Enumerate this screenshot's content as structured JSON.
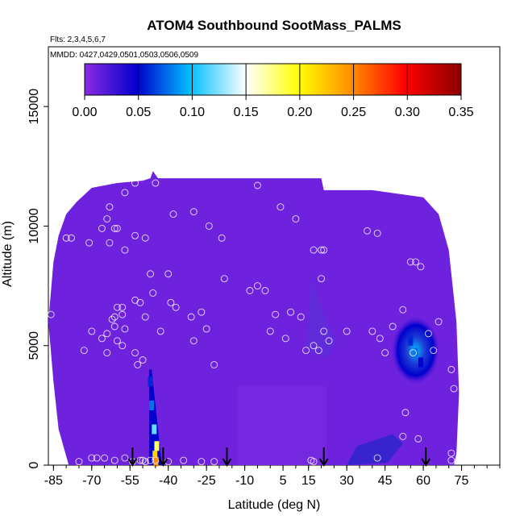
{
  "chart_data": {
    "type": "heatmap",
    "title": "ATOM4 Southbound SootMass_PALMS",
    "subtitle_flights": "Flts: 2,3,4,5,6,7",
    "subtitle_dates": "MMDD: 0427,0429,0501,0503,0506,0509",
    "xlabel": "Latitude (deg N)",
    "ylabel": "Altitude (m)",
    "xlim": [
      -87,
      90
    ],
    "ylim": [
      0,
      17500
    ],
    "x_ticks": [
      -85,
      -70,
      -55,
      -40,
      -25,
      -10,
      5,
      15,
      30,
      45,
      60,
      75
    ],
    "y_ticks": [
      0,
      5000,
      10000,
      15000
    ],
    "colorbar": {
      "ticks": [
        "0.00",
        "0.05",
        "0.10",
        "0.15",
        "0.20",
        "0.25",
        "0.30",
        "0.35"
      ],
      "range": [
        0,
        0.35
      ],
      "colors": [
        "#8a2be2",
        "#0000cd",
        "#00bfff",
        "#ffffff",
        "#ffff00",
        "#ff8c00",
        "#ff0000",
        "#8b0000"
      ]
    },
    "background_value": 0.01,
    "curtain_outline": [
      [
        -87,
        6000
      ],
      [
        -85,
        8500
      ],
      [
        -83,
        9600
      ],
      [
        -80,
        10500
      ],
      [
        -76,
        11000
      ],
      [
        -70,
        11600
      ],
      [
        -60,
        11800
      ],
      [
        -50,
        11900
      ],
      [
        -47,
        12000
      ],
      [
        -46,
        12300
      ],
      [
        -44,
        12000
      ],
      [
        -30,
        12000
      ],
      [
        -20,
        12000
      ],
      [
        0,
        12000
      ],
      [
        20,
        12000
      ],
      [
        21,
        11500
      ],
      [
        40,
        11500
      ],
      [
        60,
        11200
      ],
      [
        66,
        10500
      ],
      [
        70,
        9000
      ],
      [
        73,
        6000
      ],
      [
        74,
        3000
      ],
      [
        73,
        500
      ],
      [
        72,
        0
      ],
      [
        -79,
        0
      ],
      [
        -83,
        1500
      ],
      [
        -85,
        3500
      ],
      [
        -87,
        6000
      ]
    ],
    "high_features": [
      {
        "lat": -45.5,
        "alt": 1500,
        "value": 0.12
      },
      {
        "lat": -45.2,
        "alt": 400,
        "value": 0.22
      },
      {
        "lat": -44.8,
        "alt": 150,
        "value": 0.25
      },
      {
        "lat": -44.5,
        "alt": 800,
        "value": 0.18
      },
      {
        "lat": -46.5,
        "alt": 2500,
        "value": 0.08
      },
      {
        "lat": -47.0,
        "alt": 3500,
        "value": 0.06
      },
      {
        "lat": 57.0,
        "alt": 4700,
        "value": 0.08
      },
      {
        "lat": 55.0,
        "alt": 5200,
        "value": 0.06
      },
      {
        "lat": 59.0,
        "alt": 4300,
        "value": 0.05
      }
    ],
    "sample_points": [
      {
        "lat": -86,
        "alt": 6300
      },
      {
        "lat": -80,
        "alt": 9500
      },
      {
        "lat": -78,
        "alt": 9500
      },
      {
        "lat": -71,
        "alt": 9300
      },
      {
        "lat": -66,
        "alt": 9900
      },
      {
        "lat": -64,
        "alt": 10300
      },
      {
        "lat": -63,
        "alt": 10800
      },
      {
        "lat": -61,
        "alt": 9900
      },
      {
        "lat": -60,
        "alt": 9900
      },
      {
        "lat": -57,
        "alt": 11400
      },
      {
        "lat": -53,
        "alt": 11800
      },
      {
        "lat": -63,
        "alt": 9300
      },
      {
        "lat": -57,
        "alt": 9000
      },
      {
        "lat": -53,
        "alt": 9600
      },
      {
        "lat": -49,
        "alt": 9500
      },
      {
        "lat": -45,
        "alt": 11800
      },
      {
        "lat": -38,
        "alt": 10500
      },
      {
        "lat": -30,
        "alt": 10600
      },
      {
        "lat": -24,
        "alt": 10000
      },
      {
        "lat": -19,
        "alt": 9500
      },
      {
        "lat": -5,
        "alt": 11700
      },
      {
        "lat": 4,
        "alt": 10800
      },
      {
        "lat": 10,
        "alt": 10300
      },
      {
        "lat": 17,
        "alt": 9000
      },
      {
        "lat": 20,
        "alt": 9000
      },
      {
        "lat": 21,
        "alt": 9000
      },
      {
        "lat": 20,
        "alt": 7800
      },
      {
        "lat": 22,
        "alt": 11800
      },
      {
        "lat": 38,
        "alt": 9800
      },
      {
        "lat": 42,
        "alt": 9700
      },
      {
        "lat": 55,
        "alt": 8500
      },
      {
        "lat": 57,
        "alt": 8500
      },
      {
        "lat": 59,
        "alt": 8300
      },
      {
        "lat": 64,
        "alt": 11500
      },
      {
        "lat": 52,
        "alt": 6500
      },
      {
        "lat": -47,
        "alt": 8000
      },
      {
        "lat": -40,
        "alt": 8000
      },
      {
        "lat": -46,
        "alt": 7200
      },
      {
        "lat": -51,
        "alt": 6800
      },
      {
        "lat": -53,
        "alt": 6900
      },
      {
        "lat": -58,
        "alt": 6600
      },
      {
        "lat": -60,
        "alt": 6600
      },
      {
        "lat": -61,
        "alt": 6200
      },
      {
        "lat": -62,
        "alt": 6100
      },
      {
        "lat": -61,
        "alt": 5800
      },
      {
        "lat": -58,
        "alt": 6300
      },
      {
        "lat": -57,
        "alt": 5700
      },
      {
        "lat": -64,
        "alt": 5500
      },
      {
        "lat": -60,
        "alt": 5200
      },
      {
        "lat": -70,
        "alt": 5600
      },
      {
        "lat": -73,
        "alt": 4800
      },
      {
        "lat": -66,
        "alt": 5300
      },
      {
        "lat": -64,
        "alt": 4700
      },
      {
        "lat": -58,
        "alt": 5000
      },
      {
        "lat": -53,
        "alt": 4700
      },
      {
        "lat": -52,
        "alt": 4200
      },
      {
        "lat": -50,
        "alt": 4400
      },
      {
        "lat": -49,
        "alt": 6200
      },
      {
        "lat": -43,
        "alt": 5600
      },
      {
        "lat": -37,
        "alt": 6600
      },
      {
        "lat": -39,
        "alt": 6800
      },
      {
        "lat": -31,
        "alt": 6200
      },
      {
        "lat": -30,
        "alt": 5200
      },
      {
        "lat": -27,
        "alt": 6400
      },
      {
        "lat": -25,
        "alt": 5700
      },
      {
        "lat": -22,
        "alt": 4200
      },
      {
        "lat": -18,
        "alt": 7800
      },
      {
        "lat": -8,
        "alt": 7300
      },
      {
        "lat": -5,
        "alt": 7500
      },
      {
        "lat": -2,
        "alt": 7300
      },
      {
        "lat": 2,
        "alt": 6300
      },
      {
        "lat": 6,
        "alt": 5300
      },
      {
        "lat": 8,
        "alt": 6400
      },
      {
        "lat": 12,
        "alt": 6200
      },
      {
        "lat": 14,
        "alt": 4800
      },
      {
        "lat": 0,
        "alt": 5600
      },
      {
        "lat": 17,
        "alt": 5000
      },
      {
        "lat": 19,
        "alt": 4800
      },
      {
        "lat": 21,
        "alt": 5600
      },
      {
        "lat": 23,
        "alt": 5200
      },
      {
        "lat": 30,
        "alt": 5600
      },
      {
        "lat": 40,
        "alt": 5600
      },
      {
        "lat": 43,
        "alt": 5300
      },
      {
        "lat": 45,
        "alt": 4700
      },
      {
        "lat": 48,
        "alt": 5800
      },
      {
        "lat": 56,
        "alt": 4700
      },
      {
        "lat": 62,
        "alt": 5500
      },
      {
        "lat": 64,
        "alt": 4800
      },
      {
        "lat": 66,
        "alt": 6000
      },
      {
        "lat": 71,
        "alt": 4000
      },
      {
        "lat": 72,
        "alt": 3200
      },
      {
        "lat": 53,
        "alt": 2200
      },
      {
        "lat": 52,
        "alt": 1200
      },
      {
        "lat": 58,
        "alt": 1100
      },
      {
        "lat": 71,
        "alt": 500
      },
      {
        "lat": 71,
        "alt": 200
      },
      {
        "lat": -83,
        "alt": 300
      },
      {
        "lat": -75,
        "alt": 150
      },
      {
        "lat": -70,
        "alt": 300
      },
      {
        "lat": -68,
        "alt": 300
      },
      {
        "lat": -65,
        "alt": 300
      },
      {
        "lat": -61,
        "alt": 200
      },
      {
        "lat": -57,
        "alt": 300
      },
      {
        "lat": -54,
        "alt": 150
      },
      {
        "lat": -51,
        "alt": 200
      },
      {
        "lat": -49,
        "alt": 150
      },
      {
        "lat": -45,
        "alt": 200
      },
      {
        "lat": -40,
        "alt": 150
      },
      {
        "lat": -34,
        "alt": 200
      },
      {
        "lat": -27,
        "alt": 150
      },
      {
        "lat": -22,
        "alt": 150
      },
      {
        "lat": 16,
        "alt": 200
      },
      {
        "lat": 17,
        "alt": 150
      },
      {
        "lat": 42,
        "alt": 300
      },
      {
        "lat": -50,
        "alt": 200
      },
      {
        "lat": -47,
        "alt": 200
      }
    ],
    "flight_arrows_lat": [
      -54,
      -42,
      -17,
      21,
      61
    ]
  }
}
